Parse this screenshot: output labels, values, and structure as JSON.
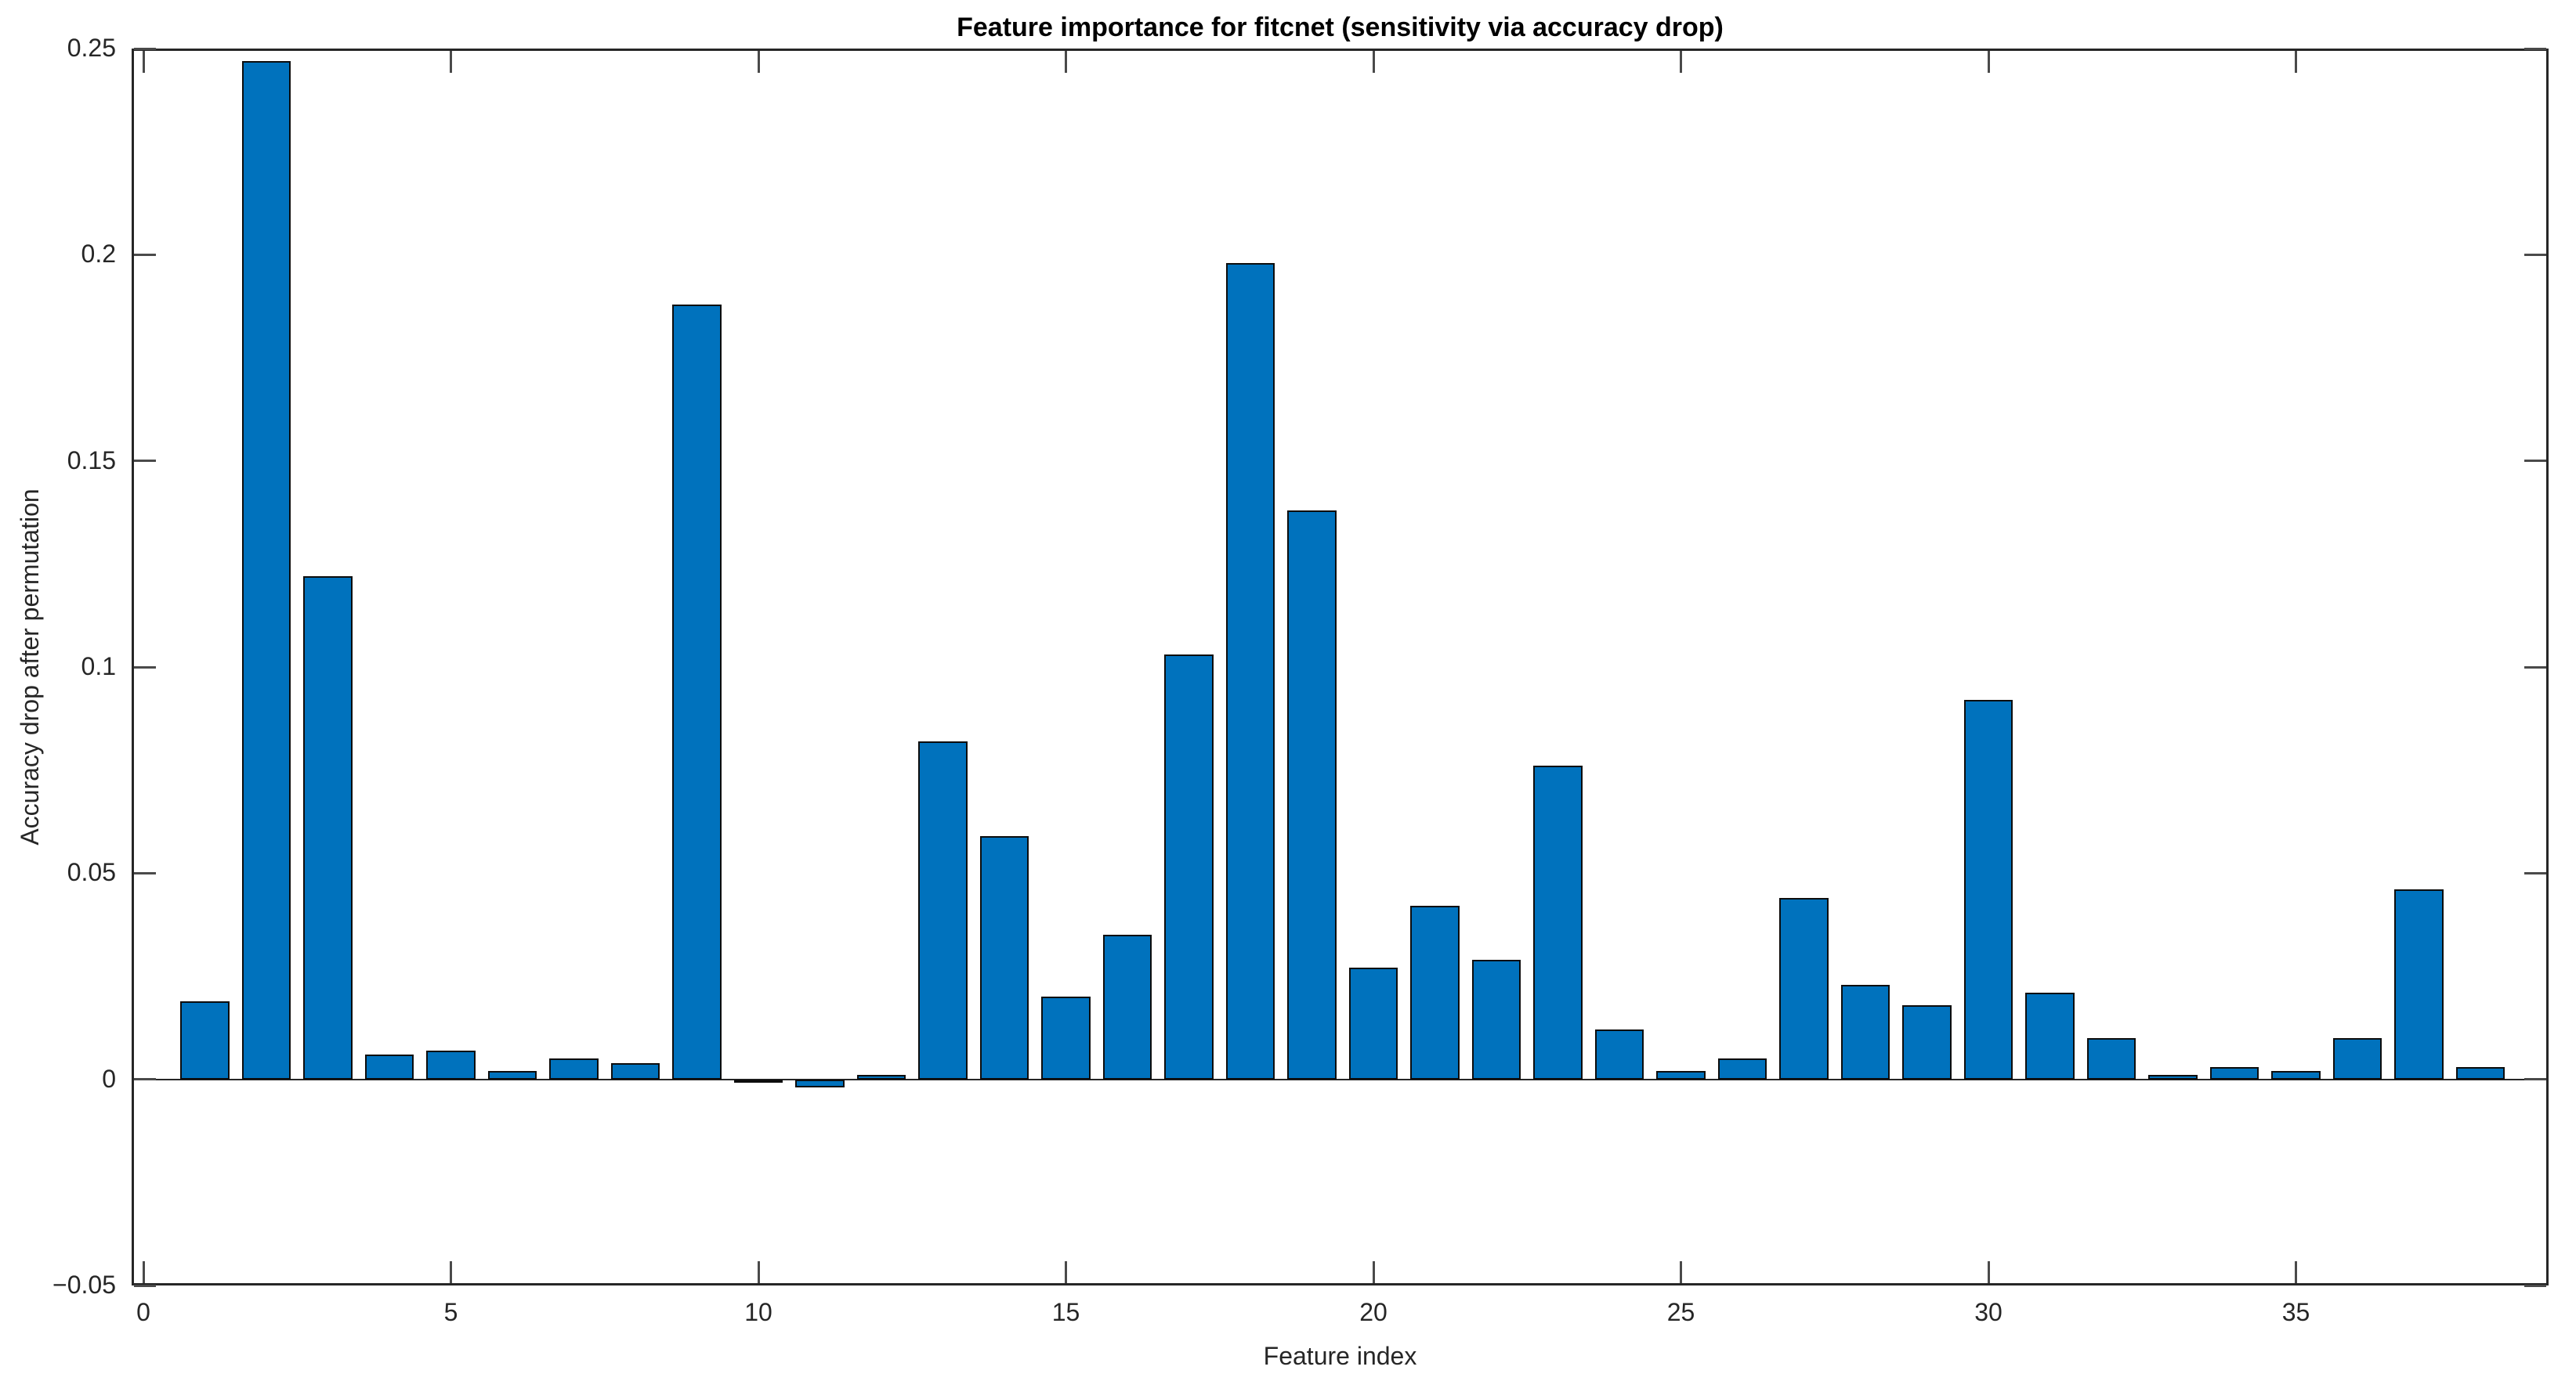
{
  "chart_data": {
    "type": "bar",
    "title": "Feature importance for fitcnet (sensitivity via accuracy drop)",
    "xlabel": "Feature index",
    "ylabel": "Accuracy drop after permutation",
    "x": [
      1,
      2,
      3,
      4,
      5,
      6,
      7,
      8,
      9,
      10,
      11,
      12,
      13,
      14,
      15,
      16,
      17,
      18,
      19,
      20,
      21,
      22,
      23,
      24,
      25,
      26,
      27,
      28,
      29,
      30,
      31,
      32,
      33,
      34,
      35,
      36,
      37,
      38
    ],
    "values": [
      0.019,
      0.247,
      0.122,
      0.006,
      0.007,
      0.002,
      0.005,
      0.004,
      0.188,
      0.0,
      -0.002,
      0.001,
      0.082,
      0.059,
      0.02,
      0.035,
      0.103,
      0.198,
      0.138,
      0.027,
      0.042,
      0.029,
      0.076,
      0.012,
      0.002,
      0.005,
      0.044,
      0.023,
      0.018,
      0.092,
      0.021,
      0.01,
      0.001,
      0.003,
      0.002,
      0.01,
      0.046,
      0.003
    ],
    "xlim": [
      -0.2,
      39.1
    ],
    "ylim": [
      -0.05,
      0.25
    ],
    "x_ticks": [
      0,
      5,
      10,
      15,
      20,
      25,
      30,
      35
    ],
    "x_tick_labels": [
      "0",
      "5",
      "10",
      "15",
      "20",
      "25",
      "30",
      "35"
    ],
    "y_ticks": [
      -0.05,
      0,
      0.05,
      0.1,
      0.15,
      0.2,
      0.25
    ],
    "y_tick_labels": [
      "−0.05",
      "0",
      "0.05",
      "0.1",
      "0.15",
      "0.2",
      "0.25"
    ],
    "grid": false,
    "legend": null,
    "bar_width_fraction": 0.8,
    "colors": {
      "bar_fill": "#0072BD",
      "bar_edge": "#0d0d0d",
      "axis": "#262626",
      "tick": "#4a4a4a",
      "tick_label": "#262626",
      "title": "#000000",
      "background": "#FFFFFF"
    }
  }
}
